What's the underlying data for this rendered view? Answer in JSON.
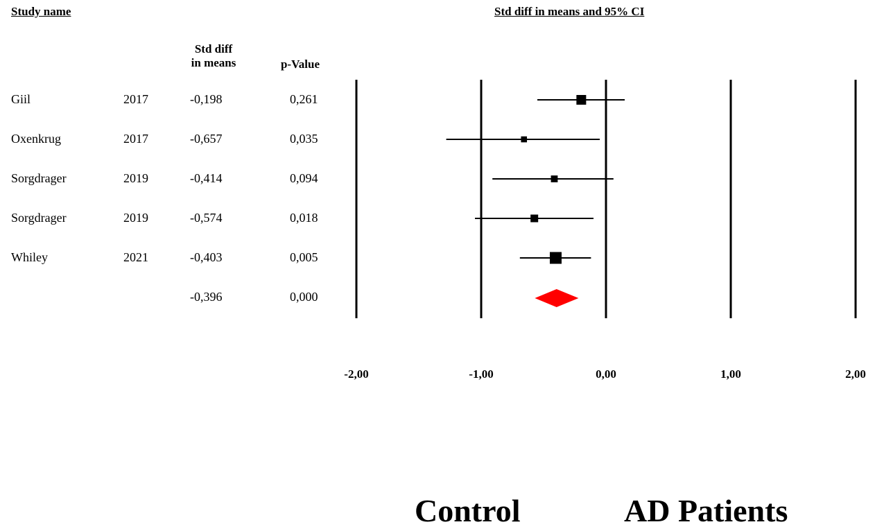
{
  "headers": {
    "study_name": "Study name",
    "plot_title": "Std diff in means and 95% CI",
    "col_effect_line1": "Std diff",
    "col_effect_line2": "in means",
    "col_pvalue": "p-Value"
  },
  "rows": [
    {
      "study": "Giil",
      "year": "2017",
      "effect": "-0,198",
      "p": "0,261"
    },
    {
      "study": "Oxenkrug",
      "year": "2017",
      "effect": "-0,657",
      "p": "0,035"
    },
    {
      "study": "Sorgdrager",
      "year": "2019",
      "effect": "-0,414",
      "p": "0,094"
    },
    {
      "study": "Sorgdrager",
      "year": "2019",
      "effect": "-0,574",
      "p": "0,018"
    },
    {
      "study": "Whiley",
      "year": "2021",
      "effect": "-0,403",
      "p": "0,005"
    }
  ],
  "summary": {
    "effect": "-0,396",
    "p": "0,000"
  },
  "favours": {
    "left": "Control",
    "right": "AD Patients"
  },
  "chart_data": {
    "type": "forest",
    "xlim": [
      -2,
      2
    ],
    "ticks": [
      -2,
      -1,
      0,
      1,
      2
    ],
    "tick_labels": [
      "-2,00",
      "-1,00",
      "0,00",
      "1,00",
      "2,00"
    ],
    "studies": [
      {
        "name": "Giil 2017",
        "effect": -0.198,
        "lower": -0.55,
        "upper": 0.15,
        "weight": 1.0
      },
      {
        "name": "Oxenkrug 2017",
        "effect": -0.657,
        "lower": -1.28,
        "upper": -0.05,
        "weight": 0.55
      },
      {
        "name": "Sorgdrager 2019",
        "effect": -0.414,
        "lower": -0.91,
        "upper": 0.06,
        "weight": 0.65
      },
      {
        "name": "Sorgdrager 2019",
        "effect": -0.574,
        "lower": -1.05,
        "upper": -0.1,
        "weight": 0.75
      },
      {
        "name": "Whiley 2021",
        "effect": -0.403,
        "lower": -0.69,
        "upper": -0.12,
        "weight": 1.25
      }
    ],
    "summary": {
      "effect": -0.396,
      "lower": -0.57,
      "upper": -0.22
    },
    "colors": {
      "marker": "#000000",
      "summary": "#ff0000",
      "axis": "#000000"
    }
  }
}
